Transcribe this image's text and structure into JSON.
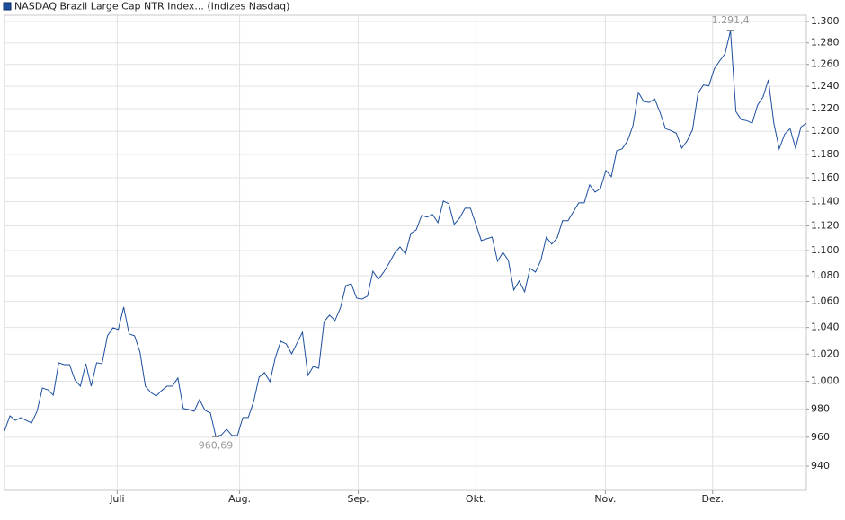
{
  "chart_data": {
    "type": "line",
    "log": true,
    "grid": true,
    "legend": "top-left",
    "ylim": [
      923.5,
      1306
    ],
    "yticks": [
      {
        "value": 1300,
        "label": "1.300"
      },
      {
        "value": 1280,
        "label": "1.280"
      },
      {
        "value": 1260,
        "label": "1.260"
      },
      {
        "value": 1240,
        "label": "1.240"
      },
      {
        "value": 1220,
        "label": "1.220"
      },
      {
        "value": 1200,
        "label": "1.200"
      },
      {
        "value": 1180,
        "label": "1.180"
      },
      {
        "value": 1160,
        "label": "1.160"
      },
      {
        "value": 1140,
        "label": "1.140"
      },
      {
        "value": 1120,
        "label": "1.120"
      },
      {
        "value": 1100,
        "label": "1.100"
      },
      {
        "value": 1080,
        "label": "1.080"
      },
      {
        "value": 1060,
        "label": "1.060"
      },
      {
        "value": 1040,
        "label": "1.040"
      },
      {
        "value": 1020,
        "label": "1.020"
      },
      {
        "value": 1000,
        "label": "1.000"
      },
      980,
      960,
      940
    ],
    "xlim": [
      0,
      148
    ],
    "xticks": [
      {
        "value": 20.8,
        "label": "Juli"
      },
      {
        "value": 43.4,
        "label": "Aug."
      },
      {
        "value": 65.3,
        "label": "Sep."
      },
      {
        "value": 87.0,
        "label": "Okt."
      },
      {
        "value": 110.9,
        "label": "Nov."
      },
      {
        "value": 130.7,
        "label": "Dez."
      }
    ],
    "series": [
      {
        "name": "NASDAQ Brazil Large Cap NTR Index... (Indizes Nasdaq)",
        "color": "#1c4e9e",
        "values": [
          964.3,
          975.1,
          971.9,
          973.9,
          971.9,
          970.0,
          978.3,
          995.1,
          993.8,
          989.9,
          1013.6,
          1012.2,
          1012.2,
          1001.0,
          996.4,
          1012.9,
          996.4,
          1013.6,
          1012.9,
          1033.7,
          1039.8,
          1038.5,
          1055.6,
          1035.1,
          1033.7,
          1021.6,
          996.4,
          991.9,
          989.3,
          993.2,
          996.4,
          996.4,
          1002.4,
          980.3,
          979.6,
          978.3,
          986.7,
          979.0,
          977.1,
          960.69,
          961.5,
          965.6,
          961.2,
          961.2,
          973.9,
          973.9,
          985.4,
          1003.0,
          1006.3,
          999.7,
          1017.6,
          1029.6,
          1027.6,
          1020.2,
          1028.3,
          1036.4,
          1004.3,
          1010.9,
          1009.5,
          1044.6,
          1049.4,
          1045.3,
          1054.9,
          1072.3,
          1073.7,
          1062.5,
          1061.8,
          1064.0,
          1083.6,
          1077.3,
          1082.9,
          1090.1,
          1097.9,
          1103.0,
          1097.2,
          1113.9,
          1116.8,
          1128.6,
          1127.2,
          1129.4,
          1122.7,
          1140.5,
          1138.3,
          1121.3,
          1126.4,
          1134.5,
          1134.5,
          1121.3,
          1108.1,
          1109.5,
          1110.9,
          1091.5,
          1098.6,
          1092.2,
          1068.8,
          1075.9,
          1067.4,
          1085.8,
          1082.9,
          1092.2,
          1110.9,
          1105.2,
          1110.2,
          1124.2,
          1124.2,
          1131.6,
          1139.0,
          1139.0,
          1154.0,
          1147.9,
          1150.9,
          1166.2,
          1160.9,
          1183.1,
          1184.7,
          1191.7,
          1205.0,
          1234.6,
          1226.3,
          1225.5,
          1228.8,
          1216.6,
          1202.3,
          1200.7,
          1198.3,
          1185.4,
          1191.7,
          1201.5,
          1233.8,
          1241.2,
          1240.4,
          1255.8,
          1263.2,
          1269.9,
          1291.4,
          1217.4,
          1210.2,
          1209.4,
          1207.1,
          1223.1,
          1230.4,
          1245.9,
          1207.1,
          1184.7,
          1197.5,
          1202.3,
          1185.4,
          1203.8,
          1207.0
        ],
        "value_labels": [
          null,
          null,
          null,
          null,
          null,
          null,
          null,
          null,
          null,
          null,
          null,
          null,
          null,
          null,
          null,
          null,
          null,
          null,
          null,
          null,
          null,
          null,
          null,
          null,
          null,
          null,
          null,
          null,
          null,
          null,
          null,
          null,
          null,
          null,
          null,
          null,
          null,
          null,
          null,
          "960,69",
          null,
          null,
          null,
          null,
          null,
          null,
          null,
          null,
          null,
          null,
          null,
          null,
          null,
          null,
          null,
          null,
          null,
          null,
          null,
          null,
          null,
          null,
          null,
          null,
          null,
          null,
          null,
          null,
          null,
          null,
          null,
          null,
          null,
          null,
          null,
          null,
          null,
          null,
          null,
          null,
          null,
          null,
          null,
          null,
          null,
          null,
          null,
          null,
          null,
          null,
          null,
          null,
          null,
          null,
          null,
          null,
          null,
          null,
          null,
          null,
          null,
          null,
          null,
          null,
          null,
          null,
          null,
          null,
          null,
          null,
          null,
          null,
          null,
          null,
          null,
          null,
          null,
          null,
          null,
          null,
          null,
          null,
          null,
          null,
          null,
          null,
          null,
          null,
          null,
          null,
          null,
          null,
          null,
          null,
          "1.291,4",
          null,
          null,
          null,
          null,
          null,
          null,
          null,
          null,
          null,
          null,
          null,
          null,
          null,
          null
        ]
      }
    ]
  }
}
